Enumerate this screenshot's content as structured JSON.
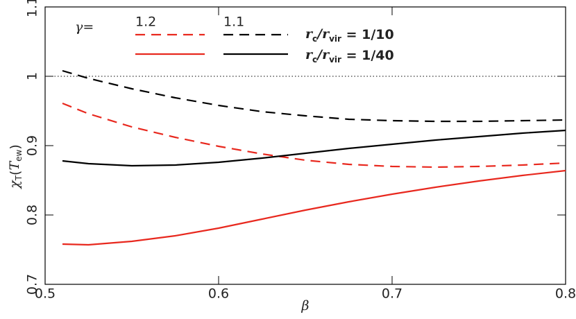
{
  "chart_data": {
    "type": "line",
    "xlabel": "β",
    "ylabel": [
      "χ",
      "T",
      "(",
      "T",
      "ew",
      ")"
    ],
    "x": [
      0.51,
      0.525,
      0.55,
      0.575,
      0.6,
      0.625,
      0.65,
      0.675,
      0.7,
      0.725,
      0.75,
      0.775,
      0.8
    ],
    "series": [
      {
        "color": "#e8281e",
        "dash": "dashed",
        "values": [
          0.961,
          0.946,
          0.927,
          0.912,
          0.899,
          0.888,
          0.879,
          0.873,
          0.87,
          0.869,
          0.87,
          0.872,
          0.875
        ]
      },
      {
        "color": "#000000",
        "dash": "dashed",
        "values": [
          1.008,
          0.997,
          0.982,
          0.969,
          0.958,
          0.949,
          0.943,
          0.938,
          0.936,
          0.935,
          0.935,
          0.936,
          0.937
        ]
      },
      {
        "color": "#e8281e",
        "dash": "solid",
        "values": [
          0.758,
          0.757,
          0.762,
          0.77,
          0.781,
          0.794,
          0.807,
          0.819,
          0.83,
          0.84,
          0.849,
          0.857,
          0.864
        ]
      },
      {
        "color": "#000000",
        "dash": "solid",
        "values": [
          0.878,
          0.874,
          0.871,
          0.872,
          0.876,
          0.882,
          0.889,
          0.896,
          0.902,
          0.908,
          0.913,
          0.918,
          0.922
        ]
      }
    ],
    "legend": {
      "title": "γ=",
      "columns": [
        "1.2",
        "1.1"
      ],
      "column_colors": [
        "#e8281e",
        "#000000"
      ],
      "row_prefix": [
        "r",
        "c",
        "/r",
        "vir"
      ],
      "rows": [
        " = 1/10",
        " = 1/40"
      ]
    },
    "reference_line": 1,
    "xlim": [
      0.5,
      0.8
    ],
    "xticks": [
      0.5,
      0.6,
      0.7,
      0.8
    ],
    "ylim": [
      0.7,
      1.1
    ],
    "yticks": [
      0.7,
      0.8,
      0.9,
      1,
      1.1
    ]
  }
}
